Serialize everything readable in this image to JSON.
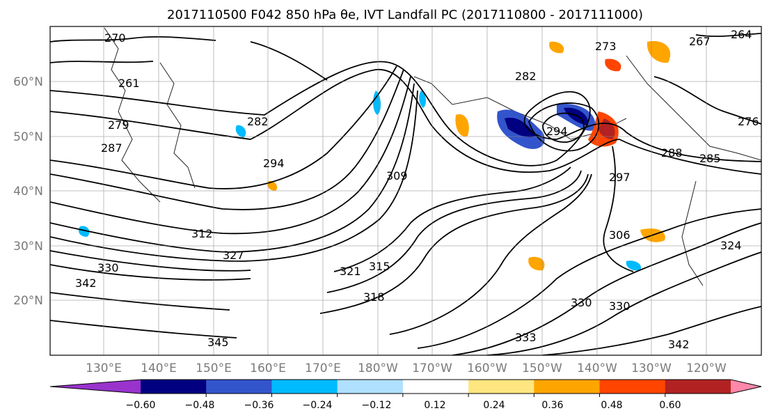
{
  "title": "2017110500 F042 850 hPa θe, IVT Landfall PC (2017110800 - 2017111000)",
  "latitude_labels": [
    "60°N",
    "50°N",
    "40°N",
    "30°N",
    "20°N"
  ],
  "longitude_labels": [
    "130°E",
    "140°E",
    "150°E",
    "160°E",
    "170°E",
    "180°W",
    "170°W",
    "160°W",
    "150°W",
    "140°W",
    "130°W",
    "120°W"
  ],
  "colorbar": {
    "ticks": [
      "−0.60",
      "−0.48",
      "−0.36",
      "−0.24",
      "−0.12",
      "0.12",
      "0.24",
      "0.36",
      "0.48",
      "0.60"
    ],
    "colors": [
      "#9933cc",
      "#000080",
      "#3355cc",
      "#00bbff",
      "#b0e0ff",
      "#ffffff",
      "#ffe680",
      "#ffa500",
      "#ff4500",
      "#b22222",
      "#ff88aa"
    ]
  },
  "contour_labels": [
    "270",
    "261",
    "279",
    "287",
    "282",
    "294",
    "312",
    "327",
    "330",
    "342",
    "345",
    "318",
    "315",
    "309",
    "321",
    "294",
    "306",
    "324",
    "285",
    "288",
    "276",
    "267",
    "264",
    "273",
    "297",
    "330",
    "342",
    "333",
    "330",
    "282"
  ]
}
